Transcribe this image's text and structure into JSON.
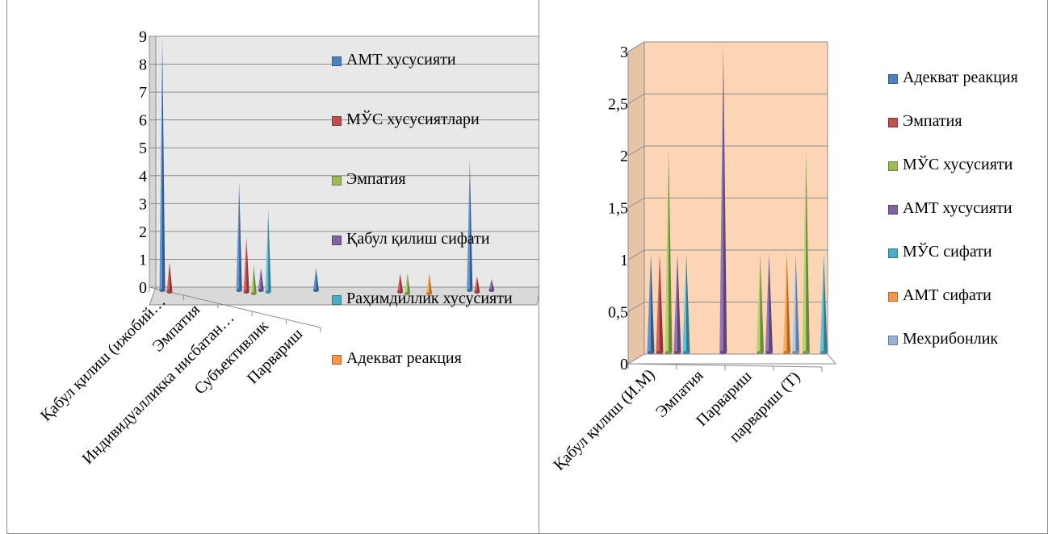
{
  "chart_data": [
    {
      "type": "bar",
      "variant": "3d-cone",
      "categories": [
        "Қабул қилиш (ижобий…",
        "Эмпатия",
        "Индивидуалликка нисбатан…",
        "Субъективлик",
        "Парвариш"
      ],
      "ylim": [
        0,
        9
      ],
      "yticks": [
        "0",
        "1",
        "2",
        "3",
        "4",
        "5",
        "6",
        "7",
        "8",
        "9"
      ],
      "grid": true,
      "legend_position": "right",
      "colors": {
        "wall": "#e8e8e8",
        "floor": "#d9d9d9"
      },
      "series": [
        {
          "name": "АМТ хусусияти",
          "color": "#4f81bd",
          "values": [
            9,
            3.8,
            0.7,
            0,
            4.6
          ]
        },
        {
          "name": "МЎС хусусиятлари",
          "color": "#c0504d",
          "values": [
            0.9,
            1.8,
            0,
            0.5,
            0.4
          ]
        },
        {
          "name": "Эмпатия",
          "color": "#9bbb59",
          "values": [
            0,
            0.8,
            0,
            0.5,
            0
          ]
        },
        {
          "name": "Қабул қилиш сифати",
          "color": "#8064a2",
          "values": [
            0,
            0.7,
            0,
            0,
            0.3
          ]
        },
        {
          "name": "Раҳимдиллик хусусияти",
          "color": "#4bacc6",
          "values": [
            0,
            2.8,
            0,
            0,
            0
          ]
        },
        {
          "name": "Адекват реакция",
          "color": "#f79646",
          "values": [
            0,
            0,
            0,
            0.5,
            0
          ]
        }
      ]
    },
    {
      "type": "bar",
      "variant": "3d-cone",
      "categories": [
        "Қабул қилиш (И.М)",
        "Эмпатия",
        "Парвариш",
        "парвариш (Т)"
      ],
      "ylim": [
        0,
        3
      ],
      "yticks": [
        "0",
        "0,5",
        "1",
        "1,5",
        "2",
        "2,5",
        "3"
      ],
      "grid": true,
      "legend_position": "right",
      "colors": {
        "wall": "#fcd5b5",
        "floor": "#ffffff"
      },
      "series": [
        {
          "name": "Адекват реакция",
          "color": "#4f81bd",
          "values": [
            1,
            0,
            0,
            0
          ]
        },
        {
          "name": "Эмпатия",
          "color": "#c0504d",
          "values": [
            1,
            0,
            0,
            0
          ]
        },
        {
          "name": "МЎС хусусияти",
          "color": "#9bbb59",
          "values": [
            2,
            0,
            1,
            2
          ]
        },
        {
          "name": "АМТ хусусияти",
          "color": "#8064a2",
          "values": [
            1,
            3,
            1,
            0
          ]
        },
        {
          "name": "МЎС сифати",
          "color": "#4bacc6",
          "values": [
            1,
            0,
            0,
            1
          ]
        },
        {
          "name": "АМТ сифати",
          "color": "#f79646",
          "values": [
            0,
            0,
            1,
            0
          ]
        },
        {
          "name": "Мехрибонлик",
          "color": "#95b3d7",
          "values": [
            0,
            0,
            1,
            0
          ]
        }
      ]
    }
  ]
}
